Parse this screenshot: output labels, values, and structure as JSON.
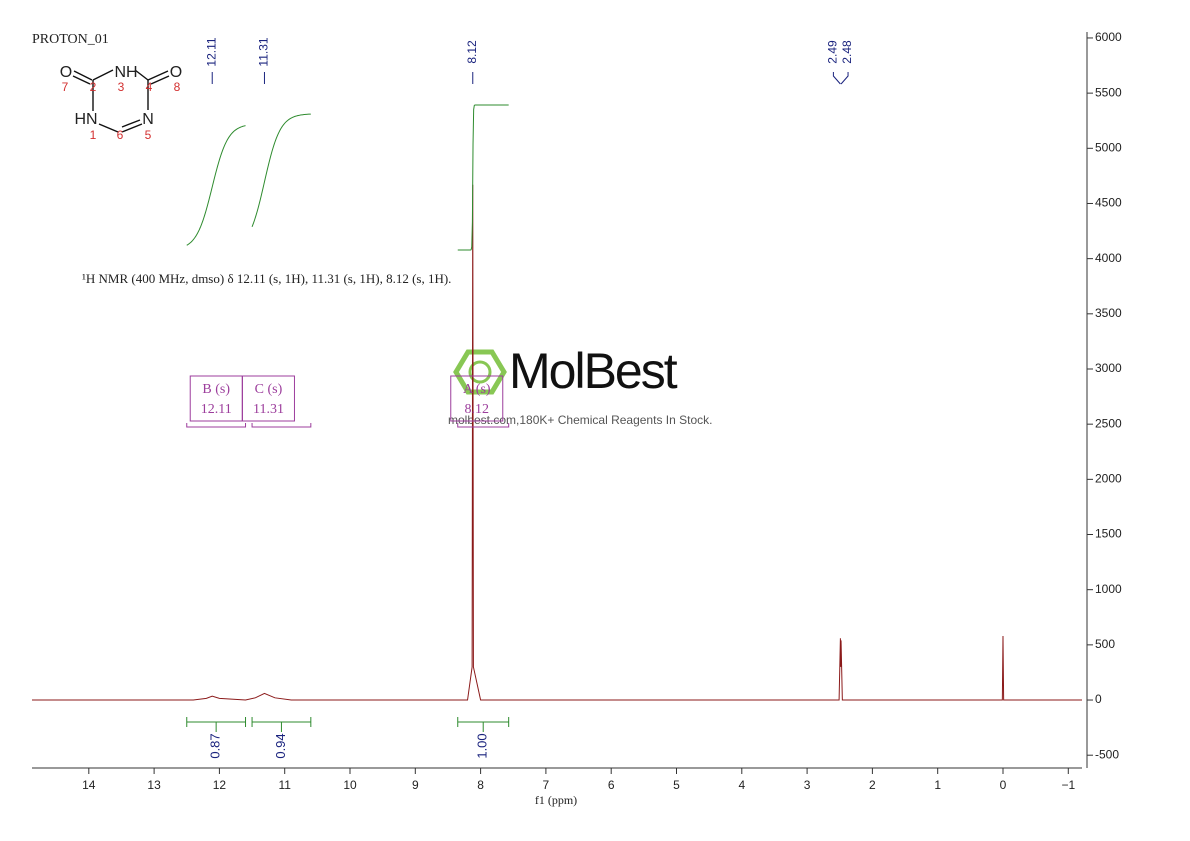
{
  "chart_data": {
    "type": "line",
    "title": "PROTON_01",
    "annotation": "¹H NMR (400 MHz, dmso) δ 12.11 (s, 1H), 11.31 (s, 1H), 8.12 (s, 1H).",
    "xlabel": "f1 (ppm)",
    "x": [
      14.87,
      12.4,
      12.2,
      12.11,
      12.0,
      11.6,
      11.45,
      11.31,
      11.15,
      10.9,
      8.2,
      8.13,
      8.12,
      8.11,
      8.0,
      2.51,
      2.49,
      2.485,
      2.48,
      2.46,
      0.01,
      0,
      -0.01,
      -1.21
    ],
    "series": [
      {
        "color": "#8b1a1a",
        "values": [
          0,
          0,
          15,
          35,
          15,
          0,
          20,
          60,
          20,
          0,
          0,
          300,
          4670,
          300,
          0,
          0,
          560,
          300,
          540,
          0,
          0,
          580,
          0,
          0
        ]
      }
    ],
    "xlim": [
      14.87,
      -1.21
    ],
    "xticks": [
      14,
      13,
      12,
      11,
      10,
      9,
      8,
      7,
      6,
      5,
      4,
      3,
      2,
      1,
      0,
      {
        "value": -1,
        "label": "−1"
      }
    ],
    "ylim": [
      -616,
      6054
    ],
    "yticks": [
      -500,
      0,
      500,
      1000,
      1500,
      2000,
      2500,
      3000,
      3500,
      4000,
      4500,
      5000,
      5500,
      6000
    ],
    "peak_labels": [
      12.11,
      11.31,
      8.12,
      2.49,
      2.48
    ],
    "peak_label_color": "#1a237e",
    "multiplets": {
      "labels": [
        "B (s)",
        "C (s)",
        "A (s)"
      ],
      "shifts": [
        12.11,
        11.31,
        8.12
      ],
      "ranges": [
        [
          12.5,
          11.6
        ],
        [
          11.5,
          10.6
        ],
        [
          8.35,
          7.57
        ]
      ],
      "color": "#9c3d9c"
    },
    "integrals": {
      "ranges": [
        [
          12.5,
          11.6
        ],
        [
          11.5,
          10.6
        ],
        [
          8.35,
          7.57
        ]
      ],
      "values": [
        0.87,
        0.94,
        1
      ],
      "value_labels": [
        "0.87",
        "0.94",
        "1.00"
      ],
      "color": "#2e8b2e"
    }
  },
  "molecule": {
    "atoms": [
      "O",
      "NH",
      "O",
      "HN",
      "N"
    ],
    "numbers": [
      "7",
      "2",
      "3",
      "4",
      "8",
      "1",
      "6",
      "5"
    ]
  },
  "watermark": {
    "brand": "MolBest",
    "tagline": "molbest.com,180K+ Chemical Reagents In Stock."
  }
}
